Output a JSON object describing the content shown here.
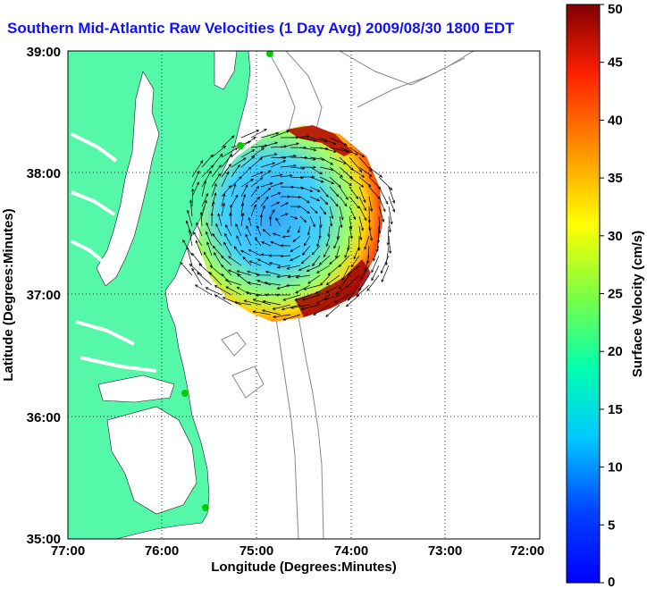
{
  "title": "Southern Mid-Atlantic Raw Velocities (1 Day Avg) 2009/08/30 1800 EDT",
  "axes": {
    "xlabel": "Longitude (Degrees:Minutes)",
    "ylabel": "Latitude (Degrees:Minutes)",
    "x_ticks": [
      "77:00",
      "76:00",
      "75:00",
      "74:00",
      "73:00",
      "72:00"
    ],
    "y_ticks": [
      "39:00",
      "38:00",
      "37:00",
      "36:00",
      "35:00"
    ],
    "grid": "dotted"
  },
  "colorbar": {
    "label": "Surface Velocity (cm/s)",
    "ticks": [
      "0",
      "5",
      "10",
      "15",
      "20",
      "25",
      "30",
      "35",
      "40",
      "45",
      "50"
    ],
    "min": 0,
    "max": 50,
    "colormap": "jet"
  },
  "colors": {
    "land": "#55f7a8",
    "title": "#1010ff",
    "station": "#00cc00",
    "bathymetry": "#888888",
    "vector": "#000000"
  }
}
